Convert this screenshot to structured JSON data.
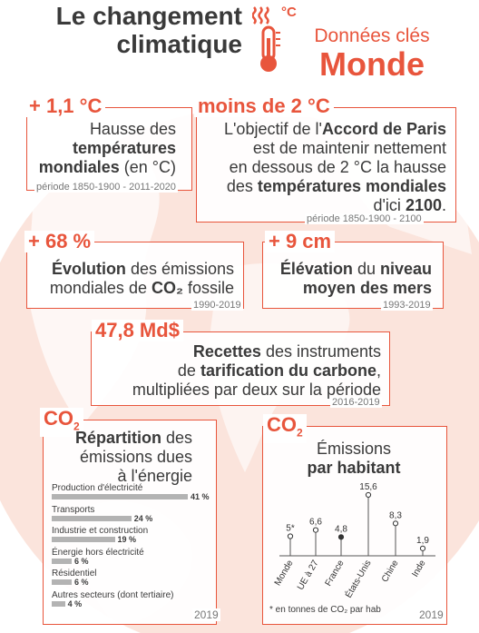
{
  "header": {
    "title_line1": "Le changement",
    "title_line2": "climatique",
    "thermo_unit": "°C",
    "subtitle_line1": "Données clés",
    "subtitle_line2": "Monde"
  },
  "cards": {
    "temp": {
      "value": "+ 1,1 °C",
      "t1": "Hausse des",
      "t2": "températures",
      "t3a": "mondiales",
      "t3b": " (en °C)",
      "period": "période 1850-1900 - 2011-2020"
    },
    "goal": {
      "value": "moins de 2 °C",
      "t1a": "L'objectif de l'",
      "t1b": "Accord de Paris",
      "t2": "est de maintenir nettement",
      "t3": "en dessous de 2 °C la hausse",
      "t4a": "des ",
      "t4b": "températures mondiales",
      "t5a": "d'ici ",
      "t5b": "2100",
      "t5c": ".",
      "period": "période 1850-1900 - 2100"
    },
    "emissions": {
      "value": "+ 68 %",
      "t1a": "Évolution",
      "t1b": " des émissions",
      "t2a": "mondiales de ",
      "t2b": "CO₂",
      "t2c": " fossile",
      "period": "1990-2019"
    },
    "sea": {
      "value": "+ 9 cm",
      "t1a": "Élévation",
      "t1b": " du ",
      "t1c": "niveau",
      "t2": "moyen des mers",
      "period": "1993-2019"
    },
    "carbon": {
      "value": "47,8 Md$",
      "t1a": "Recettes",
      "t1b": " des instruments",
      "t2a": "de ",
      "t2b": "tarification du  carbone",
      "t2c": ",",
      "t3": "multipliées par deux sur la période",
      "period": "2016-2019"
    }
  },
  "energy_panel": {
    "badge_main": "CO",
    "badge_sub": "2",
    "t1a": "Répartition",
    "t1b": " des",
    "t2": "émissions dues",
    "t3": "à l'énergie",
    "year": "2019"
  },
  "capita_panel": {
    "badge_main": "CO",
    "badge_sub": "2",
    "t1": "Émissions",
    "t2": "par habitant",
    "footnote": "* en tonnes de CO₂ par hab",
    "year": "2019"
  },
  "chart_data": [
    {
      "type": "bar",
      "orientation": "horizontal",
      "title": "Répartition des émissions dues à l'énergie",
      "categories": [
        "Production d'électricité",
        "Transports",
        "Industrie et construction",
        "Énergie hors électricité",
        "Résidentiel",
        "Autres secteurs (dont tertiaire)"
      ],
      "values": [
        41,
        24,
        19,
        6,
        6,
        4
      ],
      "value_labels": [
        "41 %",
        "24 %",
        "19 %",
        "6 %",
        "6 %",
        "4 %"
      ],
      "unit": "%",
      "year": "2019",
      "bar_color": "#b3b3b3"
    },
    {
      "type": "lollipop",
      "title": "Émissions par habitant",
      "categories": [
        "Monde",
        "UE à 27",
        "France",
        "États-Unis",
        "Chine",
        "Inde"
      ],
      "values": [
        5,
        6.6,
        4.8,
        15.6,
        8.3,
        1.9
      ],
      "value_labels": [
        "5*",
        "6,6",
        "4,8",
        "15,6",
        "8,3",
        "1,9"
      ],
      "highlight": "France",
      "year": "2019"
    }
  ],
  "colors": {
    "accent": "#e8553c",
    "text": "#3a3a3a",
    "globe": "#fbe6df",
    "bar": "#b3b3b3"
  }
}
